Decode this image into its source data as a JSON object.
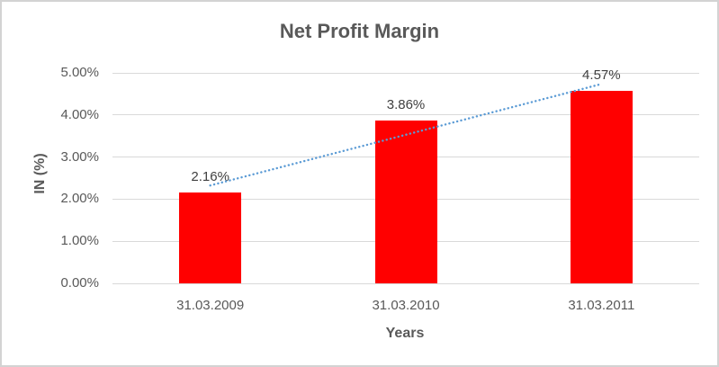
{
  "chart_data": {
    "type": "bar",
    "title": "Net Profit Margin",
    "categories": [
      "31.03.2009",
      "31.03.2010",
      "31.03.2011"
    ],
    "values": [
      2.16,
      3.86,
      4.57
    ],
    "data_labels": [
      "2.16%",
      "3.86%",
      "4.57%"
    ],
    "xlabel": "Years",
    "ylabel": "IN (%)",
    "ylim": [
      0,
      5
    ],
    "yticks": [
      0,
      1,
      2,
      3,
      4,
      5
    ],
    "ytick_labels": [
      "0.00%",
      "1.00%",
      "2.00%",
      "3.00%",
      "4.00%",
      "5.00%"
    ],
    "grid": true,
    "legend": "none",
    "bar_color": "#FF0000",
    "trendline": {
      "type": "linear",
      "style": "dotted",
      "color": "#5B9BD5"
    }
  },
  "colors": {
    "title_text": "#595959",
    "axis_text": "#595959",
    "data_label_text": "#404040",
    "gridline": "#D9D9D9",
    "frame_border": "#D3D3D3",
    "background": "#FFFFFF"
  }
}
